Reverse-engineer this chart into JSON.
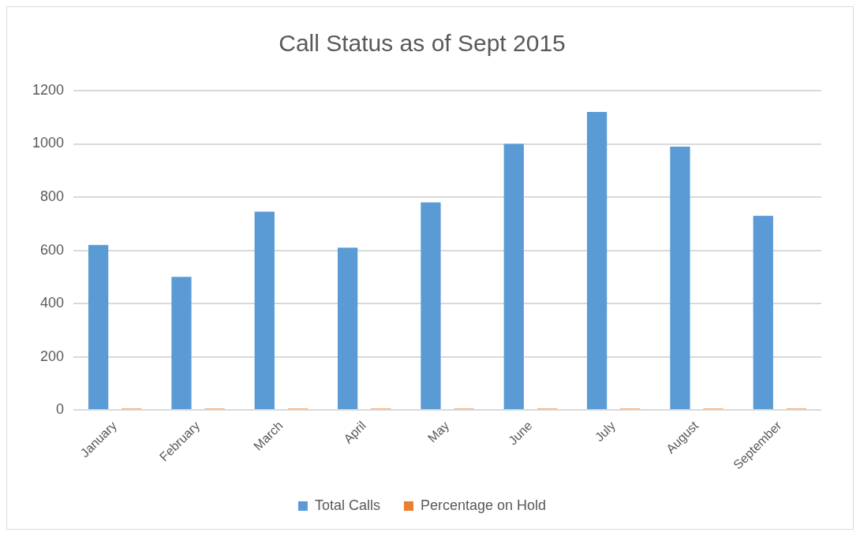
{
  "chart_data": {
    "type": "bar",
    "title": "Call Status as of Sept 2015",
    "categories": [
      "January",
      "February",
      "March",
      "April",
      "May",
      "June",
      "July",
      "August",
      "September"
    ],
    "series": [
      {
        "name": "Total Calls",
        "color": "#5b9bd5",
        "values": [
          620,
          500,
          745,
          610,
          780,
          1000,
          1120,
          990,
          730
        ]
      },
      {
        "name": "Percentage on Hold",
        "color": "#ed7d31",
        "values": [
          5,
          5,
          5,
          5,
          5,
          5,
          5,
          5,
          5
        ]
      }
    ],
    "ylim": [
      0,
      1200
    ],
    "yticks": [
      0,
      200,
      400,
      600,
      800,
      1000,
      1200
    ],
    "grid": "y",
    "legend": "bottom"
  }
}
